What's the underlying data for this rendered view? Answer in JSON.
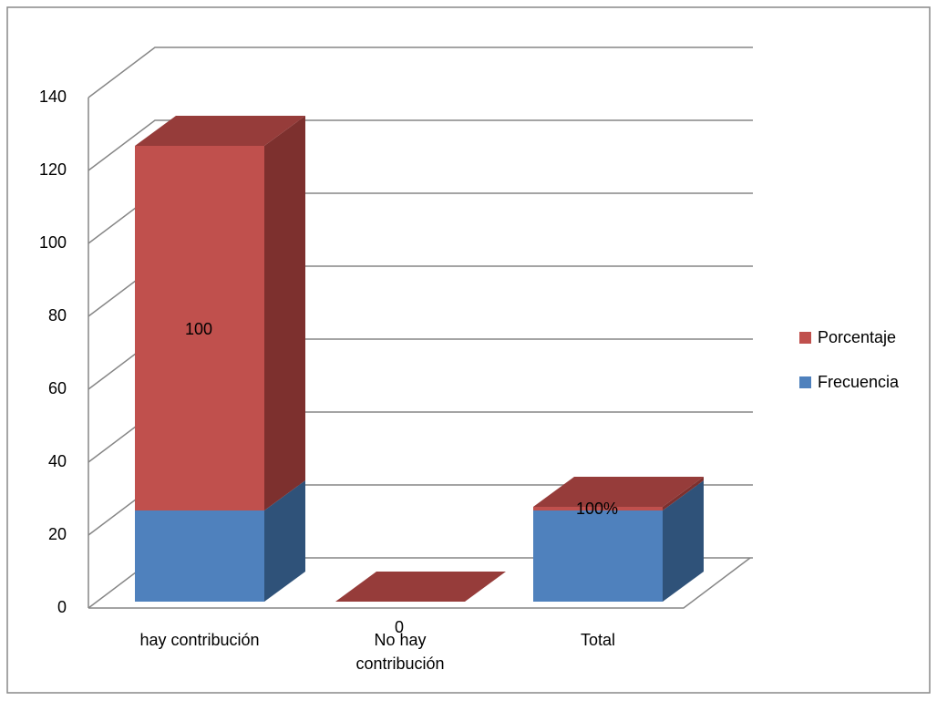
{
  "chart_data": {
    "type": "bar3d-stacked",
    "categories": [
      "hay contribución",
      "No hay contribución",
      "Total"
    ],
    "series": [
      {
        "name": "Frecuencia",
        "color": "#4f81bd",
        "values": [
          25,
          0,
          25
        ]
      },
      {
        "name": "Porcentaje",
        "color": "#c0504d",
        "values": [
          100,
          0,
          1
        ],
        "value_labels": [
          "100",
          "0",
          "100%"
        ]
      }
    ],
    "ylim": [
      0,
      140
    ],
    "yticks": [
      0,
      20,
      40,
      60,
      80,
      100,
      120,
      140
    ],
    "grid": true,
    "legend": "right"
  }
}
